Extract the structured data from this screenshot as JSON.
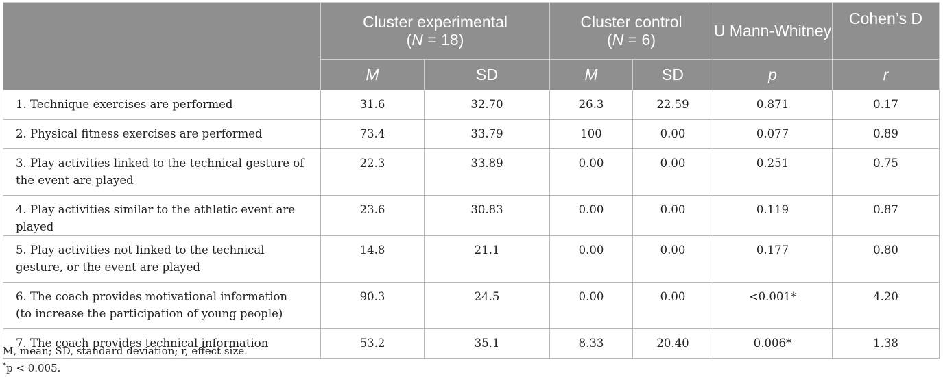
{
  "header": {
    "col_exp": "Cluster experimental",
    "col_exp_n_open": "(",
    "col_exp_n_var": "N",
    "col_exp_n_val": " = 18)",
    "col_ctrl": "Cluster control",
    "col_ctrl_n_open": "(",
    "col_ctrl_n_var": "N",
    "col_ctrl_n_val": " = 6)",
    "col_u": "U Mann-Whitney",
    "col_d": "Cohen’s D",
    "sub_m1": "M",
    "sub_sd1": "SD",
    "sub_m2": "M",
    "sub_sd2": "SD",
    "sub_p": "p",
    "sub_r": "r"
  },
  "rows": [
    {
      "label": "1. Technique exercises are performed",
      "m1": "31.6",
      "sd1": "32.70",
      "m2": "26.3",
      "sd2": "22.59",
      "p": "0.871",
      "r": "0.17"
    },
    {
      "label": "2. Physical fitness exercises are performed",
      "m1": "73.4",
      "sd1": "33.79",
      "m2": "100",
      "sd2": "0.00",
      "p": "0.077",
      "r": "0.89"
    },
    {
      "label": "3. Play activities linked to the technical gesture of the event are played",
      "m1": "22.3",
      "sd1": "33.89",
      "m2": "0.00",
      "sd2": "0.00",
      "p": "0.251",
      "r": "0.75"
    },
    {
      "label": "4. Play activities similar to the athletic event are played",
      "m1": "23.6",
      "sd1": "30.83",
      "m2": "0.00",
      "sd2": "0.00",
      "p": "0.119",
      "r": "0.87"
    },
    {
      "label": "5. Play activities not linked to the technical gesture, or the event are played",
      "m1": "14.8",
      "sd1": "21.1",
      "m2": "0.00",
      "sd2": "0.00",
      "p": "0.177",
      "r": "0.80"
    },
    {
      "label": "6. The coach provides motivational information (to increase the participation of young people)",
      "m1": "90.3",
      "sd1": "24.5",
      "m2": "0.00",
      "sd2": "0.00",
      "p": "<0.001*",
      "r": "4.20"
    },
    {
      "label": "7. The coach provides technical information",
      "m1": "53.2",
      "sd1": "35.1",
      "m2": "8.33",
      "sd2": "20.40",
      "p": "0.006*",
      "r": "1.38"
    }
  ],
  "footnotes": {
    "abbrev": "M, mean; SD, standard deviation; r, effect size.",
    "star": "*",
    "sig": "p < 0.005."
  }
}
